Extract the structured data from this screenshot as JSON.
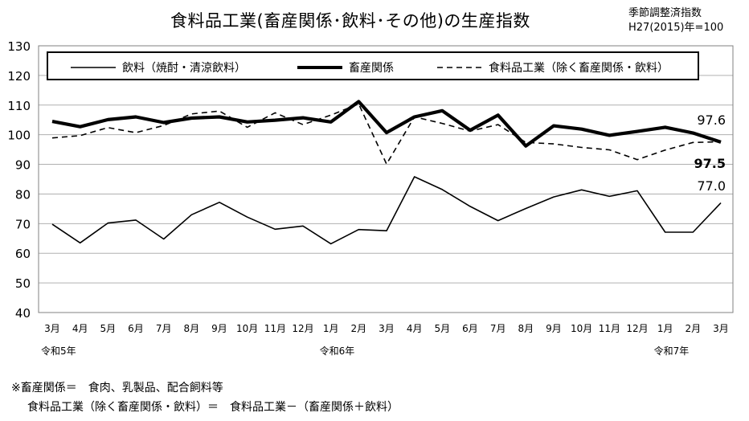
{
  "header": {
    "title": "食料品工業(畜産関係･飲料･その他)の生産指数",
    "note_line1": "季節調整済指数",
    "note_line2": "H27(2015)年=100"
  },
  "footnote": {
    "line1": "※畜産関係＝　食肉、乳製品、配合飼料等",
    "line2": "食料品工業（除く畜産関係・飲料）＝　食料品工業－（畜産関係＋飲料）"
  },
  "chart_data": {
    "type": "line",
    "title": "食料品工業(畜産関係･飲料･その他)の生産指数",
    "ylim": [
      40,
      130
    ],
    "yticks": [
      "40",
      "50",
      "60",
      "70",
      "80",
      "90",
      "100",
      "110",
      "120",
      "130"
    ],
    "grid": "horizontal",
    "legend_position": "top",
    "categories": [
      "3月",
      "4月",
      "5月",
      "6月",
      "7月",
      "8月",
      "9月",
      "10月",
      "11月",
      "12月",
      "1月",
      "2月",
      "3月",
      "4月",
      "5月",
      "6月",
      "7月",
      "8月",
      "9月",
      "10月",
      "11月",
      "12月",
      "1月",
      "2月",
      "3月"
    ],
    "year_labels": [
      {
        "index": 0,
        "label": "令和5年"
      },
      {
        "index": 10,
        "label": "令和6年"
      },
      {
        "index": 22,
        "label": "令和7年"
      }
    ],
    "series": [
      {
        "name": "飲料（焼酎・清涼飲料）",
        "style": "thin",
        "color": "#000000",
        "values": [
          69.8,
          63.5,
          70.2,
          71.2,
          64.8,
          73.0,
          77.2,
          72.2,
          68.1,
          69.2,
          63.2,
          68.0,
          67.6,
          85.8,
          81.5,
          75.8,
          71.0,
          75.1,
          79.0,
          81.4,
          79.2,
          81.1,
          67.1,
          67.1,
          77.0
        ]
      },
      {
        "name": "畜産関係",
        "style": "thick",
        "color": "#000000",
        "values": [
          104.5,
          102.7,
          105.1,
          106.0,
          104.1,
          105.6,
          106.0,
          104.3,
          104.9,
          105.7,
          104.3,
          111.2,
          100.7,
          106.0,
          108.1,
          101.5,
          106.6,
          96.2,
          103.0,
          101.9,
          99.8,
          101.1,
          102.5,
          100.6,
          97.5
        ]
      },
      {
        "name": "食料品工業（除く畜産関係・飲料）",
        "style": "dashed",
        "color": "#000000",
        "values": [
          98.9,
          99.7,
          102.4,
          100.7,
          103.1,
          107.0,
          108.0,
          102.5,
          107.4,
          103.4,
          106.6,
          110.4,
          90.1,
          106.0,
          103.8,
          101.2,
          103.4,
          97.4,
          96.9,
          95.7,
          94.9,
          91.6,
          94.8,
          97.4,
          97.6
        ]
      }
    ],
    "end_labels": [
      {
        "series": 2,
        "text": "97.6",
        "bold": false
      },
      {
        "series": 1,
        "text": "97.5",
        "bold": true
      },
      {
        "series": 0,
        "text": "77.0",
        "bold": false
      }
    ]
  }
}
